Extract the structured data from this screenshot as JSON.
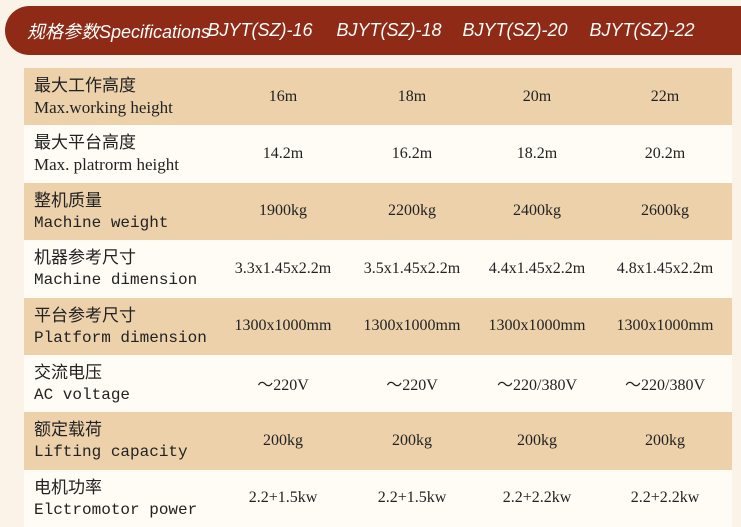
{
  "header": {
    "title": "规格参数Specifications",
    "models": [
      "BJYT(SZ)-16",
      "BJYT(SZ)-18",
      "BJYT(SZ)-20",
      "BJYT(SZ)-22"
    ]
  },
  "colors": {
    "header_bg": "#8e2a15",
    "row_tan": "#ecd1ab",
    "row_light": "#fffbf5"
  },
  "rows": [
    {
      "zh": "最大工作高度",
      "en": "Max.working height",
      "values": [
        "16m",
        "18m",
        "20m",
        "22m"
      ]
    },
    {
      "zh": "最大平台高度",
      "en": "Max. platrorm height",
      "values": [
        "14.2m",
        "16.2m",
        "18.2m",
        "20.2m"
      ]
    },
    {
      "zh": "整机质量",
      "en": "Machine weight",
      "values": [
        "1900kg",
        "2200kg",
        "2400kg",
        "2600kg"
      ]
    },
    {
      "zh": "机器参考尺寸",
      "en": "Machine dimension",
      "values": [
        "3.3x1.45x2.2m",
        "3.5x1.45x2.2m",
        "4.4x1.45x2.2m",
        "4.8x1.45x2.2m"
      ]
    },
    {
      "zh": "平台参考尺寸",
      "en": "Platform dimension",
      "values": [
        "1300x1000mm",
        "1300x1000mm",
        "1300x1000mm",
        "1300x1000mm"
      ]
    },
    {
      "zh": "交流电压",
      "en": "AC voltage",
      "values": [
        "～220V",
        "～220V",
        "～220/380V",
        "～220/380V"
      ]
    },
    {
      "zh": "额定载荷",
      "en": "Lifting capacity",
      "values": [
        "200kg",
        "200kg",
        "200kg",
        "200kg"
      ]
    },
    {
      "zh": "电机功率",
      "en": "Elctromotor power",
      "values": [
        "2.2+1.5kw",
        "2.2+1.5kw",
        "2.2+2.2kw",
        "2.2+2.2kw"
      ]
    }
  ]
}
